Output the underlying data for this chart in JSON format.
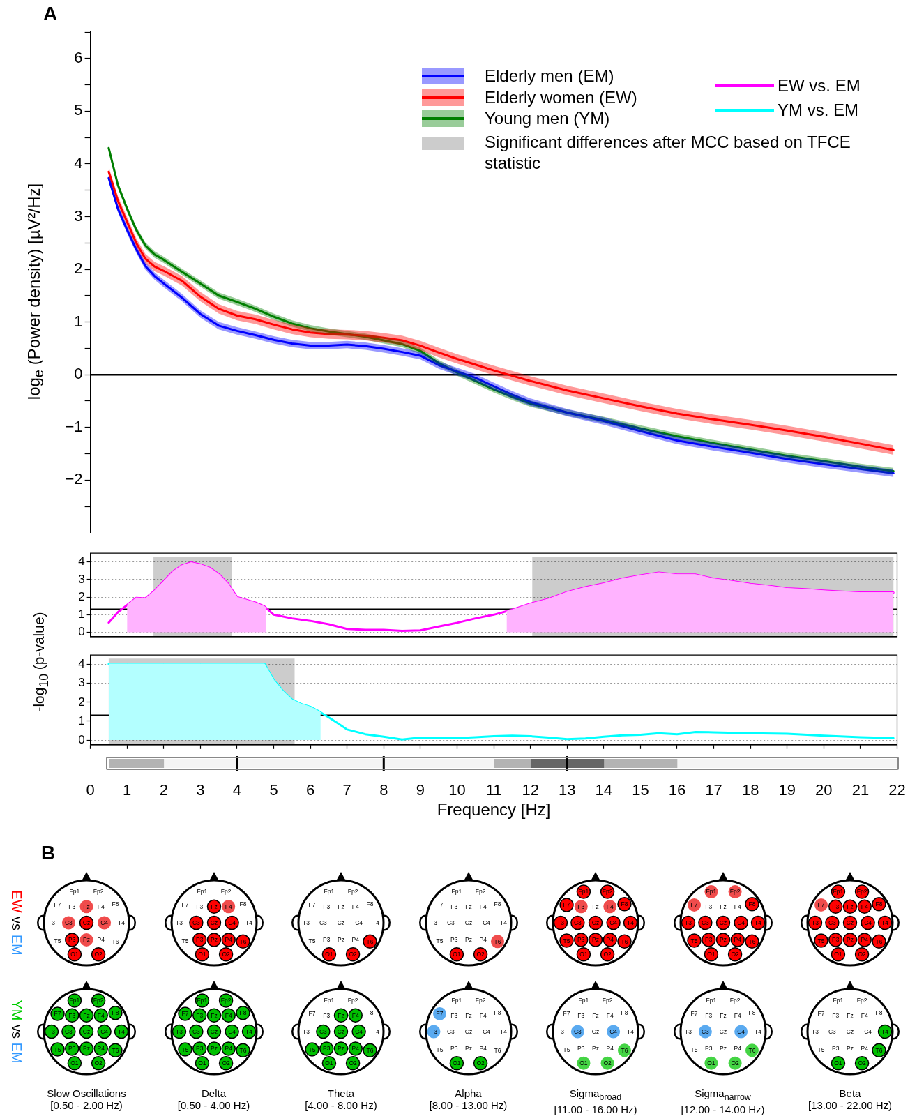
{
  "chart_data": [
    {
      "type": "line",
      "ylabel": "log$_{e}$ (Power density) [µV²/Hz]",
      "annotations": [
        "A"
      ],
      "legend": "top right",
      "tick_labels": "y",
      "x": [
        0.5,
        0.75,
        1,
        1.25,
        1.5,
        1.75,
        2,
        2.5,
        3,
        3.5,
        4,
        4.5,
        5,
        5.5,
        6,
        6.5,
        7,
        7.5,
        8,
        8.5,
        9,
        9.5,
        10,
        10.5,
        11,
        11.5,
        12,
        13,
        14,
        15,
        16,
        17,
        18,
        19,
        20,
        21,
        21.9
      ],
      "series": [
        {
          "name": "Elderly men (EM)",
          "color": "#0000ff",
          "values": [
            3.73,
            3.15,
            2.75,
            2.38,
            2.06,
            1.87,
            1.73,
            1.46,
            1.15,
            0.93,
            0.83,
            0.75,
            0.66,
            0.59,
            0.55,
            0.55,
            0.57,
            0.54,
            0.49,
            0.43,
            0.36,
            0.18,
            0.06,
            -0.06,
            -0.22,
            -0.38,
            -0.52,
            -0.72,
            -0.88,
            -1.07,
            -1.25,
            -1.37,
            -1.48,
            -1.6,
            -1.7,
            -1.79,
            -1.87
          ],
          "lower": [
            3.66,
            3.08,
            2.68,
            2.31,
            1.99,
            1.8,
            1.66,
            1.39,
            1.08,
            0.86,
            0.76,
            0.68,
            0.59,
            0.52,
            0.48,
            0.48,
            0.5,
            0.47,
            0.42,
            0.36,
            0.29,
            0.11,
            -0.01,
            -0.13,
            -0.29,
            -0.45,
            -0.59,
            -0.79,
            -0.95,
            -1.14,
            -1.32,
            -1.44,
            -1.55,
            -1.67,
            -1.77,
            -1.86,
            -1.94
          ],
          "upper": [
            3.8,
            3.22,
            2.82,
            2.45,
            2.13,
            1.94,
            1.8,
            1.53,
            1.22,
            1.0,
            0.9,
            0.82,
            0.73,
            0.66,
            0.62,
            0.62,
            0.64,
            0.61,
            0.56,
            0.5,
            0.43,
            0.25,
            0.13,
            0.01,
            -0.15,
            -0.31,
            -0.45,
            -0.65,
            -0.81,
            -1.0,
            -1.18,
            -1.3,
            -1.41,
            -1.53,
            -1.63,
            -1.72,
            -1.8
          ]
        },
        {
          "name": "Elderly women (EW)",
          "color": "#ff0000",
          "values": [
            3.85,
            3.3,
            2.9,
            2.5,
            2.2,
            2.05,
            1.97,
            1.78,
            1.48,
            1.25,
            1.12,
            1.05,
            0.95,
            0.86,
            0.8,
            0.77,
            0.76,
            0.74,
            0.7,
            0.65,
            0.55,
            0.42,
            0.3,
            0.19,
            0.08,
            -0.02,
            -0.12,
            -0.3,
            -0.45,
            -0.6,
            -0.74,
            -0.85,
            -0.95,
            -1.06,
            -1.18,
            -1.31,
            -1.43
          ],
          "lower": [
            3.76,
            3.21,
            2.81,
            2.41,
            2.11,
            1.96,
            1.88,
            1.69,
            1.39,
            1.16,
            1.03,
            0.96,
            0.86,
            0.77,
            0.71,
            0.68,
            0.67,
            0.65,
            0.61,
            0.56,
            0.46,
            0.33,
            0.21,
            0.1,
            -0.01,
            -0.11,
            -0.21,
            -0.39,
            -0.54,
            -0.69,
            -0.83,
            -0.94,
            -1.04,
            -1.15,
            -1.27,
            -1.4,
            -1.52
          ],
          "upper": [
            3.94,
            3.39,
            2.99,
            2.59,
            2.29,
            2.14,
            2.06,
            1.87,
            1.57,
            1.34,
            1.21,
            1.14,
            1.04,
            0.95,
            0.89,
            0.86,
            0.85,
            0.83,
            0.79,
            0.74,
            0.64,
            0.51,
            0.39,
            0.28,
            0.17,
            0.07,
            -0.03,
            -0.21,
            -0.36,
            -0.51,
            -0.65,
            -0.76,
            -0.86,
            -0.97,
            -1.09,
            -1.22,
            -1.34
          ]
        },
        {
          "name": "Young men (YM)",
          "color": "#007f00",
          "values": [
            4.3,
            3.6,
            3.15,
            2.75,
            2.45,
            2.28,
            2.18,
            1.95,
            1.73,
            1.5,
            1.38,
            1.25,
            1.1,
            0.97,
            0.88,
            0.82,
            0.77,
            0.72,
            0.65,
            0.58,
            0.45,
            0.22,
            0.04,
            -0.12,
            -0.28,
            -0.42,
            -0.55,
            -0.72,
            -0.86,
            -1.02,
            -1.17,
            -1.3,
            -1.42,
            -1.54,
            -1.64,
            -1.75,
            -1.83
          ],
          "lower": [
            4.24,
            3.54,
            3.09,
            2.69,
            2.39,
            2.22,
            2.12,
            1.89,
            1.67,
            1.44,
            1.32,
            1.19,
            1.04,
            0.91,
            0.82,
            0.76,
            0.71,
            0.66,
            0.59,
            0.52,
            0.39,
            0.16,
            -0.02,
            -0.18,
            -0.34,
            -0.48,
            -0.61,
            -0.78,
            -0.92,
            -1.08,
            -1.23,
            -1.36,
            -1.48,
            -1.6,
            -1.7,
            -1.81,
            -1.89
          ],
          "upper": [
            4.36,
            3.66,
            3.21,
            2.81,
            2.51,
            2.34,
            2.24,
            2.01,
            1.79,
            1.56,
            1.44,
            1.31,
            1.16,
            1.03,
            0.94,
            0.88,
            0.83,
            0.78,
            0.71,
            0.64,
            0.51,
            0.28,
            0.1,
            -0.06,
            -0.22,
            -0.36,
            -0.49,
            -0.66,
            -0.8,
            -0.96,
            -1.11,
            -1.24,
            -1.36,
            -1.48,
            -1.58,
            -1.69,
            -1.77
          ]
        }
      ],
      "xlim": [
        0,
        22
      ],
      "xticks": [
        0,
        1,
        2,
        3,
        4,
        5,
        6,
        7,
        8,
        9,
        10,
        11,
        12,
        13,
        14,
        15,
        16,
        17,
        18,
        19,
        20,
        21,
        22
      ],
      "ylim": [
        -3,
        6.5
      ],
      "yticks": [
        {
          "value": -2.5,
          "label": null
        },
        {
          "value": -2,
          "label": "−2"
        },
        {
          "value": -1.5,
          "label": null
        },
        {
          "value": -1,
          "label": "−1"
        },
        {
          "value": -0.5,
          "label": null
        },
        0,
        {
          "value": 0.5,
          "label": null
        },
        1,
        {
          "value": 1.5,
          "label": null
        },
        2,
        {
          "value": 2.5,
          "label": null
        },
        3,
        {
          "value": 3.5,
          "label": null
        },
        4,
        {
          "value": 4.5,
          "label": null
        },
        5,
        {
          "value": 5.5,
          "label": null
        },
        6,
        {
          "value": 6.5,
          "label": null
        }
      ],
      "ref_lines": [
        {
          "axis": "y",
          "value": 0,
          "color": "#000000"
        }
      ]
    },
    {
      "type": "line",
      "ylabel": "-log$_{10}$ (p-value)",
      "tick_labels": "y",
      "grid": "y",
      "x": [
        0.5,
        0.75,
        1,
        1.25,
        1.5,
        1.75,
        2,
        2.25,
        2.5,
        2.75,
        3,
        3.25,
        3.5,
        3.75,
        4,
        4.5,
        4.75,
        5,
        5.5,
        6,
        6.5,
        7,
        7.5,
        8,
        8.5,
        9,
        9.5,
        10,
        10.5,
        11,
        11.5,
        12,
        12.5,
        13,
        13.5,
        14,
        14.5,
        15,
        15.5,
        16,
        16.5,
        17,
        17.5,
        18,
        18.5,
        19,
        19.5,
        20,
        20.5,
        21,
        21.9
      ],
      "legend": "top right",
      "series": [
        {
          "type": "area",
          "color": "#ffb3ff",
          "x": [
            1,
            1.25,
            1.5,
            1.75,
            2,
            2.25,
            2.5,
            2.75,
            3,
            3.25,
            3.5,
            3.75,
            4,
            4.5,
            4.75,
            4.8,
            8,
            11.35,
            11.5,
            12,
            12.5,
            13,
            13.5,
            14,
            14.5,
            15,
            15.5,
            16,
            16.5,
            17,
            17.5,
            18,
            18.5,
            19,
            19.5,
            20,
            20.5,
            21,
            21.9
          ],
          "values": [
            1.55,
            1.96,
            1.93,
            2.37,
            2.91,
            3.46,
            3.81,
            3.97,
            3.86,
            3.67,
            3.32,
            2.78,
            2.0,
            1.69,
            1.47,
            1.38,
            null,
            1.2,
            1.28,
            1.63,
            1.9,
            2.29,
            2.56,
            2.78,
            3.05,
            3.24,
            3.4,
            3.29,
            3.29,
            3.05,
            2.91,
            2.75,
            2.64,
            2.5,
            2.45,
            2.37,
            2.31,
            2.26,
            2.26
          ]
        },
        {
          "name": "EW vs. EM",
          "color": "#ff00ff",
          "values": [
            0.55,
            1.14,
            1.55,
            1.96,
            1.93,
            2.37,
            2.91,
            3.46,
            3.81,
            3.97,
            3.86,
            3.67,
            3.32,
            2.78,
            2.0,
            1.69,
            1.47,
            1.0,
            0.79,
            0.65,
            0.46,
            0.19,
            0.14,
            0.14,
            0.08,
            0.11,
            0.33,
            0.54,
            0.79,
            1.0,
            1.28,
            1.63,
            1.9,
            2.29,
            2.56,
            2.78,
            3.05,
            3.24,
            3.4,
            3.29,
            3.29,
            3.05,
            2.91,
            2.75,
            2.64,
            2.5,
            2.45,
            2.37,
            2.31,
            2.26,
            2.26
          ]
        }
      ],
      "xlim": [
        0,
        22
      ],
      "xticks": [
        0,
        1,
        2,
        3,
        4,
        5,
        6,
        7,
        8,
        9,
        10,
        11,
        12,
        13,
        14,
        15,
        16,
        17,
        18,
        19,
        20,
        21,
        22
      ],
      "ylim": [
        -0.25,
        4.5
      ],
      "yticks": [
        0,
        1,
        2,
        3,
        4
      ],
      "ref_lines": [
        {
          "axis": "y",
          "value": 1.3,
          "color": "#000000"
        }
      ],
      "bands": [
        {
          "axis": "x",
          "from": 1.72,
          "to": 3.86,
          "color": "#000000",
          "label": "Significant differences after MCC based on TFCE statistic"
        },
        {
          "axis": "x",
          "from": 12.05,
          "to": 21.9,
          "color": "#000000"
        }
      ]
    },
    {
      "type": "line",
      "tick_labels": "y",
      "grid": "y",
      "x": [
        0.5,
        1,
        2,
        3,
        4,
        4.75,
        5,
        5.25,
        5.5,
        5.75,
        6,
        6.25,
        6.5,
        6.75,
        7,
        7.5,
        8,
        8.5,
        9,
        9.5,
        10,
        10.5,
        11,
        11.5,
        12,
        12.5,
        13,
        13.5,
        14,
        14.5,
        15,
        15.5,
        16,
        16.5,
        17,
        18,
        19,
        20,
        21,
        21.9
      ],
      "legend": "top right",
      "series": [
        {
          "type": "area",
          "color": "#b3ffff",
          "x": [
            0.5,
            1,
            2,
            3,
            4,
            4.75,
            5,
            5.25,
            5.5,
            5.75,
            6,
            6.25,
            6.28
          ],
          "values": [
            4.03,
            4.03,
            4.03,
            4.03,
            4.03,
            4.03,
            3.18,
            2.6,
            2.14,
            1.91,
            1.76,
            1.5,
            1.45
          ]
        },
        {
          "name": "YM vs. EM",
          "color": "#00ffff",
          "values": [
            4.03,
            4.03,
            4.03,
            4.03,
            4.03,
            4.03,
            3.18,
            2.6,
            2.14,
            1.91,
            1.76,
            1.5,
            1.2,
            0.89,
            0.56,
            0.31,
            0.18,
            0.03,
            0.13,
            0.1,
            0.1,
            0.15,
            0.2,
            0.23,
            0.2,
            0.13,
            0.05,
            0.08,
            0.18,
            0.25,
            0.28,
            0.36,
            0.31,
            0.43,
            0.41,
            0.36,
            0.33,
            0.23,
            0.15,
            0.1
          ]
        }
      ],
      "xlim": [
        0,
        22
      ],
      "xticks": [
        0,
        1,
        2,
        3,
        4,
        5,
        6,
        7,
        8,
        9,
        10,
        11,
        12,
        13,
        14,
        15,
        16,
        17,
        18,
        19,
        20,
        21,
        22
      ],
      "ylim": [
        -0.25,
        4.5
      ],
      "yticks": [
        0,
        1,
        2,
        3,
        4
      ],
      "ref_lines": [
        {
          "axis": "y",
          "value": 1.3,
          "color": "#000000"
        }
      ],
      "bands": [
        {
          "axis": "x",
          "from": 0.5,
          "to": 5.57,
          "color": "#000000"
        }
      ]
    },
    {
      "type": "bar",
      "orientation": "horizontal",
      "stacked": true,
      "categories": [
        null
      ],
      "tick_labels": "x",
      "xlabel": "Frequency [Hz]",
      "series": [
        {
          "color": "#ffffff",
          "values": [
            0.5
          ]
        },
        {
          "color": "#b3b3b3",
          "values": [
            1.5
          ]
        },
        {
          "color": "#f4f4f4",
          "values": [
            9
          ]
        },
        {
          "color": "#b3b3b3",
          "values": [
            1
          ]
        },
        {
          "color": "#666666",
          "values": [
            2
          ]
        },
        {
          "color": "#b3b3b3",
          "values": [
            2
          ]
        },
        {
          "color": "#f4f4f4",
          "values": [
            6
          ]
        }
      ],
      "xlim": [
        0,
        22
      ],
      "xticks": [
        0,
        1,
        2,
        3,
        4,
        5,
        6,
        7,
        8,
        9,
        10,
        11,
        12,
        13,
        14,
        15,
        16,
        17,
        18,
        19,
        20,
        21,
        22
      ],
      "ref_lines": [
        {
          "axis": "x",
          "value": 4,
          "color": "#000000"
        },
        {
          "axis": "x",
          "value": 8,
          "color": "#000000"
        },
        {
          "axis": "x",
          "value": 13,
          "color": "#000000"
        }
      ]
    },
    {
      "type": "other",
      "annotations": [
        "B"
      ],
      "ylabel": "EW vs EM",
      "categories": [
        "Fp1",
        "Fp2",
        "F7",
        "F3",
        "Fz",
        "F4",
        "F8",
        "T3",
        "C3",
        "Cz",
        "C4",
        "T4",
        "T5",
        "P3",
        "Pz",
        "P4",
        "T6",
        "O1",
        "O2"
      ],
      "colors": [
        null,
        null,
        null,
        null,
        "#f04c4c",
        null,
        null,
        null,
        "#f04c4c",
        "#ff0000",
        "#f04c4c",
        null,
        null,
        "#ff0000",
        "#f04c4c",
        null,
        null,
        "#ff0000",
        "#ff0000"
      ]
    },
    {
      "type": "other",
      "categories": [
        "Fp1",
        "Fp2",
        "F7",
        "F3",
        "Fz",
        "F4",
        "F8",
        "T3",
        "C3",
        "Cz",
        "C4",
        "T4",
        "T5",
        "P3",
        "Pz",
        "P4",
        "T6",
        "O1",
        "O2"
      ],
      "colors": [
        null,
        null,
        null,
        null,
        "#ff0000",
        "#f04c4c",
        null,
        null,
        "#ff0000",
        "#ff0000",
        "#ff0000",
        null,
        null,
        "#ff0000",
        "#ff0000",
        "#ff0000",
        "#ff0000",
        "#ff0000",
        "#ff0000"
      ]
    },
    {
      "type": "other",
      "categories": [
        "Fp1",
        "Fp2",
        "F7",
        "F3",
        "Fz",
        "F4",
        "F8",
        "T3",
        "C3",
        "Cz",
        "C4",
        "T4",
        "T5",
        "P3",
        "Pz",
        "P4",
        "T6",
        "O1",
        "O2"
      ],
      "colors": [
        null,
        null,
        null,
        null,
        null,
        null,
        null,
        null,
        null,
        null,
        null,
        null,
        null,
        null,
        null,
        null,
        "#ff0000",
        "#ff0000",
        "#ff0000"
      ]
    },
    {
      "type": "other",
      "categories": [
        "Fp1",
        "Fp2",
        "F7",
        "F3",
        "Fz",
        "F4",
        "F8",
        "T3",
        "C3",
        "Cz",
        "C4",
        "T4",
        "T5",
        "P3",
        "Pz",
        "P4",
        "T6",
        "O1",
        "O2"
      ],
      "colors": [
        null,
        null,
        null,
        null,
        null,
        null,
        null,
        null,
        null,
        null,
        null,
        null,
        null,
        null,
        null,
        null,
        "#f04c4c",
        "#ff0000",
        "#ff0000"
      ]
    },
    {
      "type": "other",
      "categories": [
        "Fp1",
        "Fp2",
        "F7",
        "F3",
        "Fz",
        "F4",
        "F8",
        "T3",
        "C3",
        "Cz",
        "C4",
        "T4",
        "T5",
        "P3",
        "Pz",
        "P4",
        "T6",
        "O1",
        "O2"
      ],
      "colors": [
        "#ff0000",
        "#ff0000",
        "#ff0000",
        "#f04c4c",
        null,
        "#f04c4c",
        "#ff0000",
        "#ff0000",
        "#ff0000",
        "#ff0000",
        "#ff0000",
        "#ff0000",
        "#ff0000",
        "#ff0000",
        "#ff0000",
        "#ff0000",
        "#ff0000",
        "#ff0000",
        "#ff0000"
      ]
    },
    {
      "type": "other",
      "categories": [
        "Fp1",
        "Fp2",
        "F7",
        "F3",
        "Fz",
        "F4",
        "F8",
        "T3",
        "C3",
        "Cz",
        "C4",
        "T4",
        "T5",
        "P3",
        "Pz",
        "P4",
        "T6",
        "O1",
        "O2"
      ],
      "colors": [
        "#f04c4c",
        "#f04c4c",
        "#f04c4c",
        null,
        null,
        null,
        "#ff0000",
        "#ff0000",
        "#ff0000",
        "#ff0000",
        "#ff0000",
        "#ff0000",
        "#ff0000",
        "#ff0000",
        "#ff0000",
        "#ff0000",
        "#ff0000",
        "#ff0000",
        "#ff0000"
      ]
    },
    {
      "type": "other",
      "categories": [
        "Fp1",
        "Fp2",
        "F7",
        "F3",
        "Fz",
        "F4",
        "F8",
        "T3",
        "C3",
        "Cz",
        "C4",
        "T4",
        "T5",
        "P3",
        "Pz",
        "P4",
        "T6",
        "O1",
        "O2"
      ],
      "colors": [
        "#ff0000",
        "#ff0000",
        "#f04c4c",
        "#ff0000",
        "#ff0000",
        "#ff0000",
        "#ff0000",
        "#ff0000",
        "#ff0000",
        "#ff0000",
        "#ff0000",
        "#ff0000",
        "#ff0000",
        "#ff0000",
        "#ff0000",
        "#ff0000",
        "#ff0000",
        "#ff0000",
        "#ff0000"
      ]
    },
    {
      "type": "other",
      "ylabel": "YM vs EM",
      "title": "Slow Oscillations",
      "subtitle": "[0.50 - 2.00 Hz)",
      "categories": [
        "Fp1",
        "Fp2",
        "F7",
        "F3",
        "Fz",
        "F4",
        "F8",
        "T3",
        "C3",
        "Cz",
        "C4",
        "T4",
        "T5",
        "P3",
        "Pz",
        "P4",
        "T6",
        "O1",
        "O2"
      ],
      "colors": [
        "#00c000",
        "#00c000",
        "#00c000",
        "#00c000",
        "#00c000",
        "#00c000",
        "#00c000",
        "#00c000",
        "#00c000",
        "#00c000",
        "#00c000",
        "#00c000",
        "#00c000",
        "#00c000",
        "#00c000",
        "#00c000",
        "#00c000",
        "#00c000",
        "#00c000"
      ]
    },
    {
      "type": "other",
      "title": "Delta",
      "subtitle": "[0.50 - 4.00 Hz)",
      "categories": [
        "Fp1",
        "Fp2",
        "F7",
        "F3",
        "Fz",
        "F4",
        "F8",
        "T3",
        "C3",
        "Cz",
        "C4",
        "T4",
        "T5",
        "P3",
        "Pz",
        "P4",
        "T6",
        "O1",
        "O2"
      ],
      "colors": [
        "#00c000",
        "#00c000",
        "#00c000",
        "#00c000",
        "#00c000",
        "#00c000",
        "#00c000",
        "#00c000",
        "#00c000",
        "#00c000",
        "#00c000",
        "#00c000",
        "#00c000",
        "#00c000",
        "#00c000",
        "#00c000",
        "#00c000",
        "#00c000",
        "#00c000"
      ]
    },
    {
      "type": "other",
      "title": "Theta",
      "subtitle": "[4.00 - 8.00 Hz)",
      "categories": [
        "Fp1",
        "Fp2",
        "F7",
        "F3",
        "Fz",
        "F4",
        "F8",
        "T3",
        "C3",
        "Cz",
        "C4",
        "T4",
        "T5",
        "P3",
        "Pz",
        "P4",
        "T6",
        "O1",
        "O2"
      ],
      "colors": [
        null,
        null,
        null,
        null,
        "#00c000",
        "#00c000",
        null,
        null,
        "#00c000",
        "#00c000",
        "#00c000",
        null,
        "#00c000",
        "#00c000",
        "#00c000",
        "#00c000",
        "#00c000",
        "#00c000",
        "#00c000"
      ]
    },
    {
      "type": "other",
      "title": "Alpha",
      "subtitle": "[8.00 - 13.00 Hz)",
      "categories": [
        "Fp1",
        "Fp2",
        "F7",
        "F3",
        "Fz",
        "F4",
        "F8",
        "T3",
        "C3",
        "Cz",
        "C4",
        "T4",
        "T5",
        "P3",
        "Pz",
        "P4",
        "T6",
        "O1",
        "O2"
      ],
      "colors": [
        null,
        null,
        "#5aaaf0",
        null,
        null,
        null,
        null,
        "#5aaaf0",
        null,
        null,
        null,
        null,
        null,
        null,
        null,
        null,
        null,
        "#00c000",
        "#00c000"
      ]
    },
    {
      "type": "other",
      "title": "Sigma$_{broad}$",
      "subtitle": "[11.00 - 16.00 Hz)",
      "categories": [
        "Fp1",
        "Fp2",
        "F7",
        "F3",
        "Fz",
        "F4",
        "F8",
        "T3",
        "C3",
        "Cz",
        "C4",
        "T4",
        "T5",
        "P3",
        "Pz",
        "P4",
        "T6",
        "O1",
        "O2"
      ],
      "colors": [
        null,
        null,
        null,
        null,
        null,
        null,
        null,
        null,
        "#5aaaf0",
        null,
        "#5aaaf0",
        null,
        null,
        null,
        null,
        null,
        "#44d444",
        "#44d444",
        "#44d444"
      ]
    },
    {
      "type": "other",
      "title": "Sigma$_{narrow}$",
      "subtitle": "[12.00 - 14.00 Hz)",
      "categories": [
        "Fp1",
        "Fp2",
        "F7",
        "F3",
        "Fz",
        "F4",
        "F8",
        "T3",
        "C3",
        "Cz",
        "C4",
        "T4",
        "T5",
        "P3",
        "Pz",
        "P4",
        "T6",
        "O1",
        "O2"
      ],
      "colors": [
        null,
        null,
        null,
        null,
        null,
        null,
        null,
        null,
        "#5aaaf0",
        null,
        "#5aaaf0",
        null,
        null,
        null,
        null,
        null,
        "#44d444",
        "#44d444",
        "#44d444"
      ]
    },
    {
      "type": "other",
      "title": "Beta",
      "subtitle": "[13.00 - 22.00 Hz)",
      "categories": [
        "Fp1",
        "Fp2",
        "F7",
        "F3",
        "Fz",
        "F4",
        "F8",
        "T3",
        "C3",
        "Cz",
        "C4",
        "T4",
        "T5",
        "P3",
        "Pz",
        "P4",
        "T6",
        "O1",
        "O2"
      ],
      "colors": [
        null,
        null,
        null,
        null,
        null,
        null,
        null,
        null,
        null,
        null,
        null,
        "#00c000",
        null,
        null,
        null,
        null,
        "#00c000",
        "#00c000",
        "#00c000"
      ]
    }
  ]
}
